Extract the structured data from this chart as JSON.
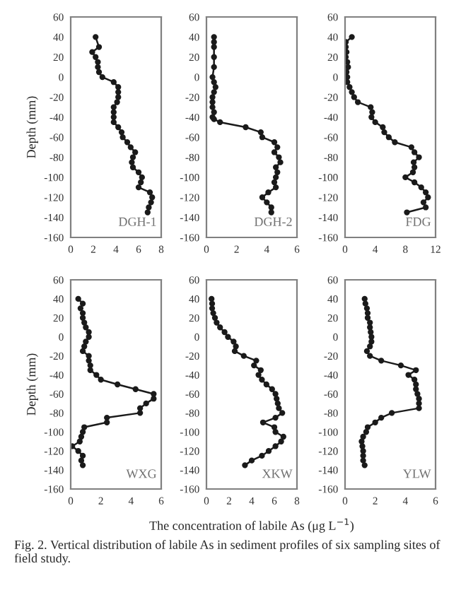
{
  "chart_data": [
    {
      "type": "line",
      "ylabel": "Depth (mm)",
      "marker": "circle",
      "grid": false,
      "xlim": [
        0,
        8
      ],
      "xticks": [
        0,
        2,
        4,
        6,
        8
      ],
      "ylim": [
        -160,
        60
      ],
      "yticks": [
        60,
        40,
        20,
        0,
        -20,
        -40,
        -60,
        -80,
        -100,
        -120,
        -140,
        -160
      ],
      "annotations": [
        "DGH-1"
      ],
      "series": [
        {
          "color": "#1a1a1a",
          "x": [
            2.2,
            2.5,
            1.9,
            2.2,
            2.4,
            2.4,
            2.5,
            2.8,
            3.8,
            4.2,
            4.2,
            4.2,
            4.1,
            3.8,
            3.8,
            3.8,
            3.8,
            4.2,
            4.5,
            4.6,
            5.0,
            5.3,
            5.7,
            5.5,
            5.4,
            5.5,
            6.0,
            6.3,
            6.2,
            6.0,
            7.0,
            7.2,
            7.1,
            6.9,
            6.8
          ],
          "values": [
            40,
            30,
            25,
            20,
            15,
            10,
            5,
            0,
            -5,
            -10,
            -15,
            -20,
            -25,
            -30,
            -35,
            -40,
            -45,
            -50,
            -55,
            -60,
            -65,
            -70,
            -75,
            -80,
            -85,
            -90,
            -95,
            -100,
            -105,
            -110,
            -115,
            -120,
            -125,
            -130,
            -135
          ]
        }
      ]
    },
    {
      "type": "line",
      "marker": "circle",
      "grid": false,
      "xlim": [
        0,
        6
      ],
      "xticks": [
        0,
        2,
        4,
        6
      ],
      "ylim": [
        -160,
        60
      ],
      "yticks": [
        60,
        40,
        20,
        0,
        -20,
        -40,
        -60,
        -80,
        -100,
        -120,
        -140,
        -160
      ],
      "annotations": [
        "DGH-2"
      ],
      "series": [
        {
          "color": "#1a1a1a",
          "x": [
            0.5,
            0.5,
            0.5,
            0.5,
            0.5,
            0.4,
            0.5,
            0.6,
            0.5,
            0.4,
            0.4,
            0.4,
            0.5,
            0.4,
            0.5,
            0.9,
            2.6,
            3.6,
            3.7,
            4.5,
            4.7,
            4.5,
            4.8,
            4.9,
            4.6,
            4.7,
            4.6,
            4.5,
            4.6,
            4.1,
            3.7,
            4.0,
            4.3,
            4.3
          ],
          "values": [
            40,
            35,
            30,
            20,
            10,
            0,
            -5,
            -10,
            -15,
            -20,
            -25,
            -30,
            -35,
            -40,
            -42,
            -45,
            -50,
            -55,
            -60,
            -65,
            -70,
            -75,
            -80,
            -85,
            -90,
            -95,
            -100,
            -105,
            -110,
            -115,
            -120,
            -125,
            -130,
            -135
          ]
        }
      ]
    },
    {
      "type": "line",
      "marker": "circle",
      "grid": false,
      "xlim": [
        0,
        12
      ],
      "xticks": [
        0,
        4,
        8,
        12
      ],
      "ylim": [
        -160,
        60
      ],
      "yticks": [
        60,
        40,
        20,
        0,
        -20,
        -40,
        -60,
        -80,
        -100,
        -120,
        -140,
        -160
      ],
      "annotations": [
        "FDG"
      ],
      "series": [
        {
          "color": "#1a1a1a",
          "x": [
            0.9,
            0.1,
            0.1,
            0.2,
            0.1,
            0.3,
            0.4,
            0.2,
            0.3,
            0.3,
            0.6,
            0.9,
            1.2,
            1.7,
            3.4,
            3.6,
            3.5,
            4.0,
            5.0,
            5.2,
            5.8,
            6.6,
            8.8,
            9.2,
            9.8,
            9.1,
            9.2,
            9.0,
            8.0,
            9.2,
            10.1,
            10.7,
            11.0,
            10.4,
            10.7,
            8.2
          ],
          "values": [
            40,
            35,
            30,
            25,
            20,
            15,
            10,
            5,
            0,
            -5,
            -10,
            -15,
            -20,
            -25,
            -30,
            -35,
            -40,
            -45,
            -50,
            -55,
            -60,
            -65,
            -70,
            -75,
            -80,
            -85,
            -90,
            -95,
            -100,
            -105,
            -110,
            -115,
            -120,
            -125,
            -130,
            -135
          ]
        }
      ]
    },
    {
      "type": "line",
      "ylabel": "Depth (mm)",
      "marker": "circle",
      "grid": false,
      "xlim": [
        0,
        6
      ],
      "xticks": [
        0,
        2,
        4,
        6
      ],
      "ylim": [
        -160,
        60
      ],
      "yticks": [
        60,
        40,
        20,
        0,
        -20,
        -40,
        -60,
        -80,
        -100,
        -120,
        -140,
        -160
      ],
      "annotations": [
        "WXG"
      ],
      "series": [
        {
          "color": "#1a1a1a",
          "x": [
            0.5,
            0.8,
            0.65,
            0.8,
            0.8,
            0.9,
            1.0,
            1.2,
            1.2,
            1.0,
            0.9,
            0.8,
            1.2,
            1.2,
            1.3,
            1.3,
            1.7,
            2.0,
            3.1,
            4.3,
            5.5,
            5.5,
            5.0,
            4.6,
            4.6,
            2.4,
            2.4,
            0.9,
            0.8,
            0.7,
            0.6,
            0.1,
            0.5,
            0.8,
            0.7,
            0.8
          ],
          "values": [
            40,
            35,
            30,
            25,
            20,
            15,
            10,
            5,
            0,
            -5,
            -10,
            -15,
            -20,
            -25,
            -30,
            -35,
            -40,
            -45,
            -50,
            -55,
            -60,
            -65,
            -70,
            -75,
            -80,
            -85,
            -90,
            -95,
            -100,
            -105,
            -110,
            -115,
            -120,
            -125,
            -130,
            -135
          ]
        }
      ]
    },
    {
      "type": "line",
      "xlabel": "The concentration of labile As (μg L$^{−1}$)",
      "marker": "circle",
      "grid": false,
      "xlim": [
        0,
        8
      ],
      "xticks": [
        0,
        2,
        4,
        6,
        8
      ],
      "ylim": [
        -160,
        60
      ],
      "yticks": [
        60,
        40,
        20,
        0,
        -20,
        -40,
        -60,
        -80,
        -100,
        -120,
        -140,
        -160
      ],
      "annotations": [
        "XKW",
        "Fig. 2. Vertical distribution of labile As in sediment profiles of six sampling sites of field study."
      ],
      "series": [
        {
          "color": "#1a1a1a",
          "x": [
            0.45,
            0.5,
            0.5,
            0.6,
            0.75,
            0.9,
            1.2,
            1.6,
            1.9,
            2.4,
            2.6,
            2.5,
            3.3,
            4.4,
            4.2,
            4.8,
            4.6,
            4.9,
            5.3,
            5.8,
            6.1,
            6.2,
            6.3,
            6.4,
            6.7,
            6.1,
            5.0,
            6.0,
            6.1,
            6.8,
            6.6,
            6.1,
            5.5,
            4.9,
            4.0,
            3.4
          ],
          "values": [
            40,
            35,
            30,
            25,
            20,
            15,
            10,
            5,
            0,
            -5,
            -10,
            -15,
            -20,
            -25,
            -30,
            -35,
            -40,
            -45,
            -50,
            -55,
            -60,
            -65,
            -70,
            -75,
            -80,
            -85,
            -90,
            -95,
            -100,
            -105,
            -110,
            -115,
            -120,
            -125,
            -130,
            -135
          ]
        }
      ]
    },
    {
      "type": "line",
      "marker": "circle",
      "grid": false,
      "xlim": [
        0,
        6
      ],
      "xticks": [
        0,
        2,
        4,
        6
      ],
      "ylim": [
        -160,
        60
      ],
      "yticks": [
        60,
        40,
        20,
        0,
        -20,
        -40,
        -60,
        -80,
        -100,
        -120,
        -140,
        -160
      ],
      "annotations": [
        "YLW"
      ],
      "series": [
        {
          "color": "#1a1a1a",
          "x": [
            1.3,
            1.35,
            1.45,
            1.5,
            1.5,
            1.65,
            1.65,
            1.7,
            1.75,
            1.75,
            1.65,
            1.45,
            1.65,
            2.4,
            3.7,
            4.7,
            4.2,
            4.6,
            4.7,
            4.7,
            4.8,
            4.9,
            4.9,
            4.9,
            3.1,
            2.4,
            2.0,
            1.5,
            1.4,
            1.2,
            1.1,
            1.15,
            1.2,
            1.2,
            1.2,
            1.3
          ],
          "values": [
            40,
            35,
            30,
            25,
            20,
            15,
            10,
            5,
            0,
            -5,
            -10,
            -15,
            -20,
            -25,
            -30,
            -35,
            -40,
            -45,
            -50,
            -55,
            -60,
            -65,
            -70,
            -75,
            -80,
            -85,
            -90,
            -95,
            -100,
            -105,
            -110,
            -115,
            -120,
            -125,
            -130,
            -135
          ]
        }
      ]
    }
  ]
}
